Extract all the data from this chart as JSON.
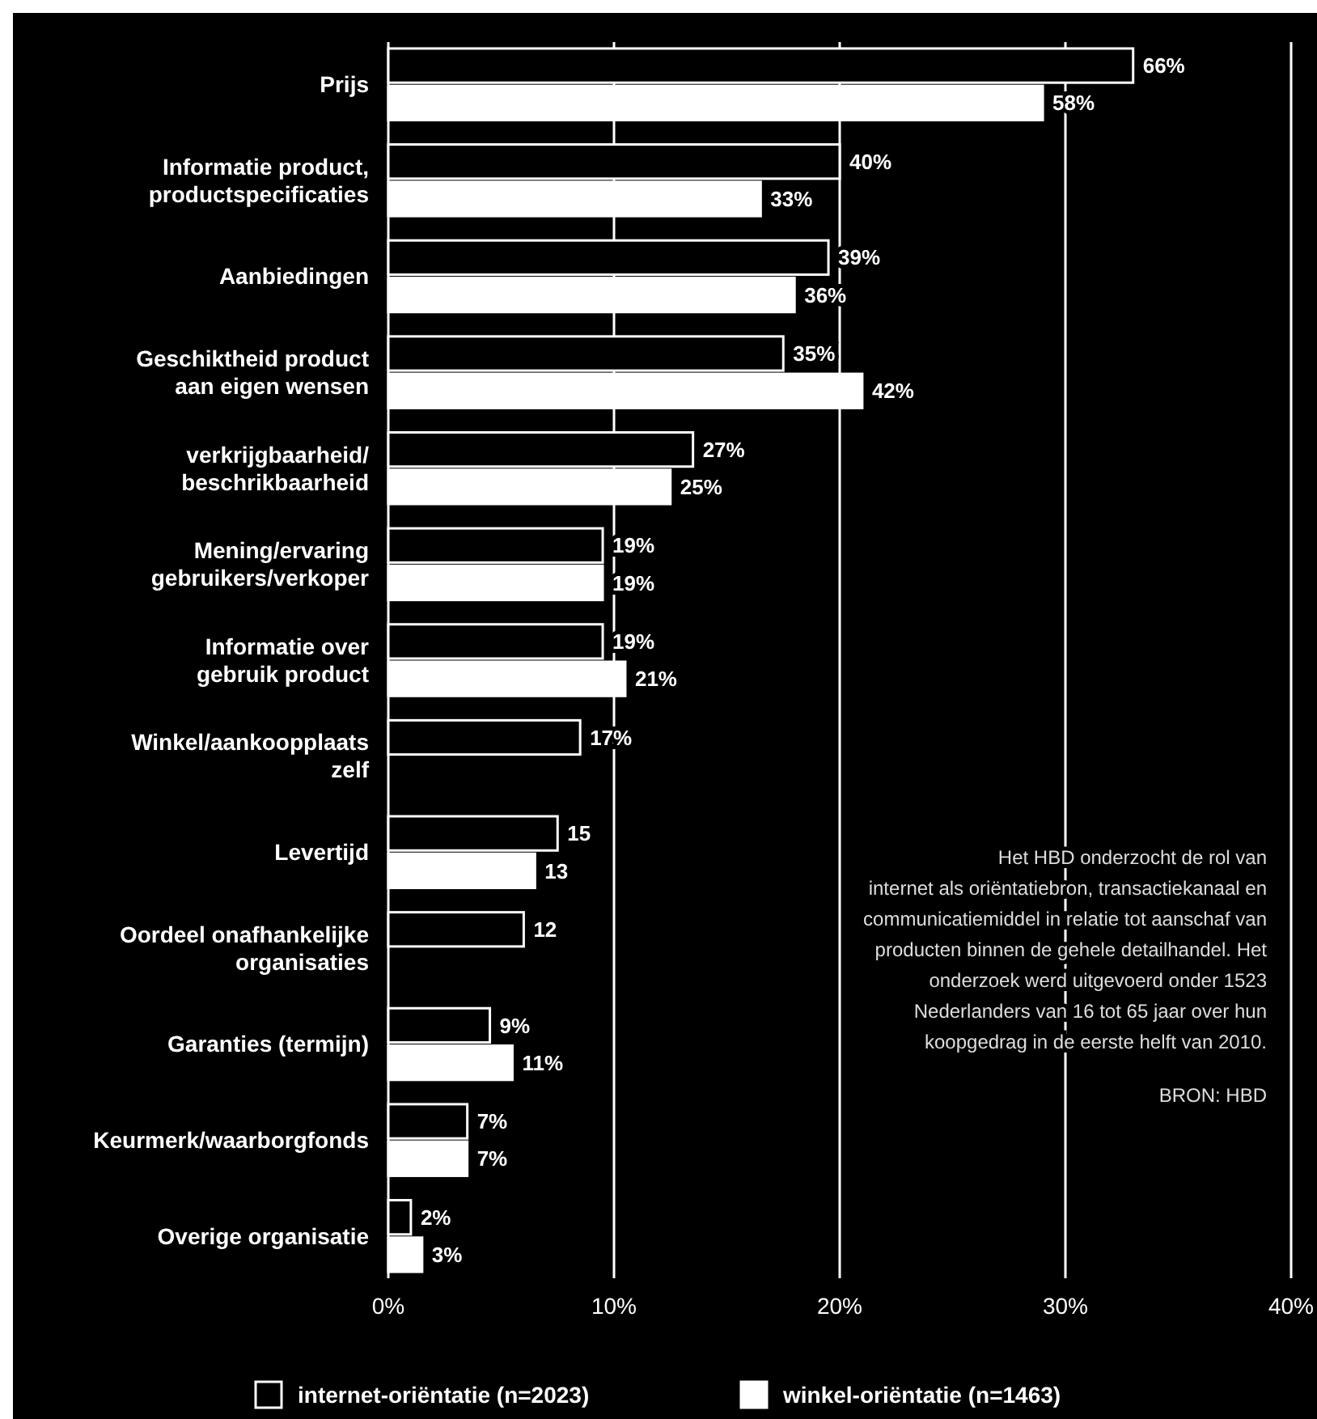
{
  "chart_data": {
    "type": "bar",
    "orientation": "horizontal",
    "categories": [
      "Prijs",
      "Informatie product,\nproductspecificaties",
      "Aanbiedingen",
      "Geschiktheid product\naan eigen wensen",
      "verkrijgbaarheid/\nbeschrikbaarheid",
      "Mening/ervaring\ngebruikers/verkoper",
      "Informatie over\ngebruik product",
      "Winkel/aankoopplaats\nzelf",
      "Levertijd",
      "Oordeel onafhankelijke\norganisaties",
      "Garanties (termijn)",
      "Keurmerk/waarborgfonds",
      "Overige organisatie"
    ],
    "series": [
      {
        "name": "internet-oriëntatie (n=2023)",
        "color": "#000000",
        "values": [
          66,
          40,
          39,
          35,
          27,
          19,
          19,
          17,
          15,
          12,
          9,
          7,
          2
        ],
        "value_labels": [
          "66%",
          "40%",
          "39%",
          "35%",
          "27%",
          "19%",
          "19%",
          "17%",
          "15",
          "12",
          "9%",
          "7%",
          "2%"
        ]
      },
      {
        "name": "winkel-oriëntatie (n=1463)",
        "color": "#ffffff",
        "values": [
          58,
          33,
          36,
          42,
          25,
          19,
          21,
          null,
          13,
          null,
          11,
          7,
          3
        ],
        "value_labels": [
          "58%",
          "33%",
          "36%",
          "42%",
          "25%",
          "19%",
          "21%",
          null,
          "13",
          null,
          "11%",
          "7%",
          "3%"
        ]
      }
    ],
    "xlim": [
      0,
      80
    ],
    "x2lim": [
      0,
      40
    ],
    "x2ticks": [
      {
        "value": 0,
        "label": "0%"
      },
      {
        "value": 10,
        "label": "10%"
      },
      {
        "value": 20,
        "label": "20%"
      },
      {
        "value": 30,
        "label": "30%"
      },
      {
        "value": 40,
        "label": "40%"
      }
    ],
    "data_labels": false,
    "grid": "x",
    "legend": "bottom",
    "annotations": [
      "Het HBD onderzocht de rol van\ninternet als oriëntatiebron, transactiekanaal en\ncommunicatiemiddel in relatie tot aanschaf van\nproducten binnen de gehele detailhandel. Het\nonderzoek werd uitgevoerd onder 1523\nNederlanders van 16 tot 65 jaar over hun\nkoopgedrag in de eerste helft van 2010.",
      "BRON: HBD"
    ]
  }
}
